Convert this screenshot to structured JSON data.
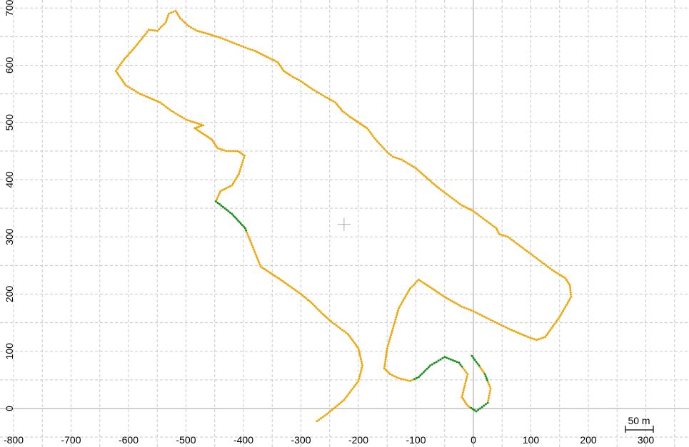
{
  "chart_data": {
    "type": "scatter",
    "title": "",
    "xlabel": "",
    "ylabel": "",
    "xlim": [
      -800,
      380
    ],
    "ylim": [
      -50,
      700
    ],
    "grid": true,
    "x_ticks": [
      -800,
      -700,
      -600,
      -500,
      -400,
      -300,
      -200,
      -100,
      0,
      100,
      200,
      300
    ],
    "y_ticks": [
      0,
      100,
      200,
      300,
      400,
      500,
      600,
      700
    ],
    "crosshair": [
      -225,
      322
    ],
    "scale_bar": {
      "label": "50 m",
      "length": 50
    },
    "colors": {
      "track_line": "#b0b0b0",
      "fix_a": "#f0a500",
      "fix_b": "#1a8c1a",
      "grid": "#c8c8c8",
      "axis": "#a0a0a0"
    },
    "series": [
      {
        "points": [
          [
            -272,
            -22
          ],
          [
            -255,
            -10
          ],
          [
            -225,
            15
          ],
          [
            -200,
            48
          ],
          [
            -193,
            75
          ],
          [
            -200,
            105
          ],
          [
            -218,
            130
          ],
          [
            -245,
            150
          ],
          [
            -262,
            165
          ],
          [
            -282,
            185
          ],
          [
            -300,
            200
          ],
          [
            -335,
            225
          ],
          [
            -370,
            248
          ],
          [
            -397,
            315
          ],
          [
            -420,
            340
          ],
          [
            -448,
            362
          ],
          [
            -440,
            380
          ],
          [
            -420,
            390
          ],
          [
            -408,
            410
          ],
          [
            -398,
            442
          ],
          [
            -410,
            450
          ],
          [
            -430,
            450
          ],
          [
            -445,
            455
          ],
          [
            -455,
            470
          ],
          [
            -470,
            480
          ],
          [
            -485,
            490
          ],
          [
            -470,
            495
          ],
          [
            -500,
            505
          ],
          [
            -525,
            520
          ],
          [
            -545,
            535
          ],
          [
            -580,
            550
          ],
          [
            -605,
            565
          ],
          [
            -622,
            590
          ],
          [
            -608,
            610
          ],
          [
            -590,
            630
          ],
          [
            -570,
            655
          ],
          [
            -565,
            662
          ],
          [
            -550,
            660
          ],
          [
            -535,
            675
          ],
          [
            -530,
            690
          ],
          [
            -518,
            695
          ],
          [
            -510,
            682
          ],
          [
            -495,
            668
          ],
          [
            -480,
            660
          ],
          [
            -462,
            655
          ],
          [
            -440,
            648
          ],
          [
            -420,
            640
          ],
          [
            -400,
            632
          ],
          [
            -380,
            625
          ],
          [
            -360,
            615
          ],
          [
            -340,
            605
          ],
          [
            -330,
            590
          ],
          [
            -318,
            582
          ],
          [
            -300,
            572
          ],
          [
            -280,
            558
          ],
          [
            -258,
            545
          ],
          [
            -240,
            535
          ],
          [
            -228,
            520
          ],
          [
            -215,
            510
          ],
          [
            -200,
            500
          ],
          [
            -185,
            490
          ],
          [
            -170,
            470
          ],
          [
            -150,
            448
          ],
          [
            -140,
            440
          ],
          [
            -125,
            435
          ],
          [
            -100,
            420
          ],
          [
            -80,
            402
          ],
          [
            -60,
            385
          ],
          [
            -40,
            370
          ],
          [
            -20,
            355
          ],
          [
            0,
            345
          ],
          [
            20,
            330
          ],
          [
            40,
            315
          ],
          [
            45,
            305
          ],
          [
            60,
            300
          ],
          [
            80,
            285
          ],
          [
            100,
            270
          ],
          [
            120,
            255
          ],
          [
            140,
            240
          ],
          [
            160,
            228
          ],
          [
            168,
            215
          ],
          [
            170,
            195
          ],
          [
            150,
            160
          ],
          [
            125,
            125
          ],
          [
            110,
            120
          ],
          [
            95,
            125
          ],
          [
            60,
            140
          ],
          [
            30,
            155
          ],
          [
            0,
            170
          ],
          [
            -20,
            178
          ],
          [
            -50,
            195
          ],
          [
            -75,
            212
          ],
          [
            -95,
            225
          ],
          [
            -110,
            210
          ],
          [
            -130,
            175
          ],
          [
            -140,
            140
          ],
          [
            -150,
            105
          ],
          [
            -155,
            70
          ],
          [
            -145,
            60
          ],
          [
            -130,
            53
          ],
          [
            -110,
            48
          ],
          [
            -95,
            55
          ],
          [
            -75,
            75
          ],
          [
            -50,
            90
          ],
          [
            -25,
            80
          ],
          [
            -10,
            60
          ],
          [
            -15,
            40
          ],
          [
            -20,
            20
          ],
          [
            -10,
            5
          ],
          [
            5,
            -5
          ],
          [
            25,
            10
          ],
          [
            30,
            35
          ],
          [
            20,
            60
          ],
          [
            10,
            75
          ],
          [
            -5,
            95
          ]
        ]
      }
    ]
  }
}
